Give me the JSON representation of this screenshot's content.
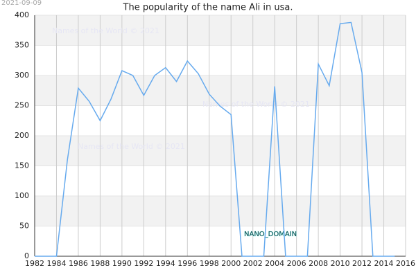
{
  "chart_data": {
    "type": "line",
    "title": "The popularity of the name Ali in usa.",
    "date": "2021-09-09",
    "annotations": [
      "Names of the World © 2021",
      "Names of the World © 2021",
      "Names of the World © 2021",
      "NANO_DOMAIN"
    ],
    "x": [
      1982,
      1983,
      1984,
      1985,
      1986,
      1987,
      1988,
      1989,
      1990,
      1991,
      1992,
      1993,
      1994,
      1995,
      1996,
      1997,
      1998,
      1999,
      2000,
      2001,
      2002,
      2003,
      2004,
      2005,
      2006,
      2007,
      2008,
      2009,
      2010,
      2011,
      2012,
      2013,
      2014,
      2015
    ],
    "series": [
      {
        "color": "#66aaee",
        "values": [
          0,
          0,
          0,
          160,
          279,
          257,
          225,
          261,
          308,
          300,
          267,
          300,
          313,
          290,
          324,
          303,
          269,
          249,
          235,
          0,
          0,
          0,
          282,
          0,
          0,
          0,
          319,
          283,
          386,
          388,
          305,
          0,
          0,
          0
        ]
      }
    ],
    "xlim": [
      1982,
      2016
    ],
    "xticks": [
      1982,
      1984,
      1986,
      1988,
      1990,
      1992,
      1994,
      1996,
      1998,
      2000,
      2002,
      2004,
      2006,
      2008,
      2010,
      2012,
      2014,
      2016
    ],
    "ylim": [
      0,
      400
    ],
    "yticks": [
      0,
      50,
      100,
      150,
      200,
      250,
      300,
      350,
      400
    ],
    "grid": true,
    "banded": true
  }
}
